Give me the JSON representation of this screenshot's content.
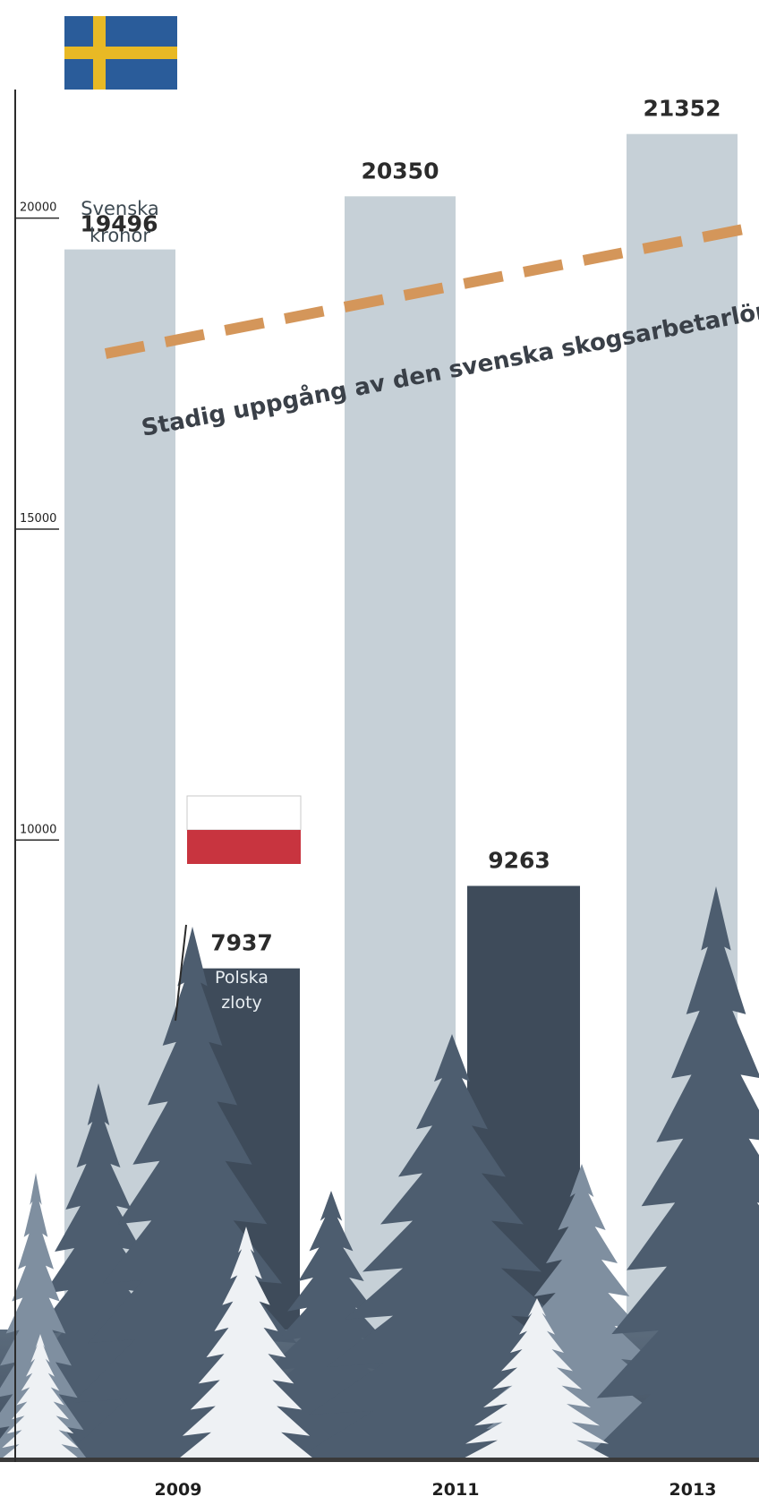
{
  "chart_data": {
    "type": "bar",
    "categories": [
      "2009",
      "2011",
      "2013"
    ],
    "series": [
      {
        "name": "Svenska kronor",
        "values": [
          19496,
          20350,
          21352
        ],
        "value_labels": [
          "19496",
          "20350",
          "21352"
        ],
        "color": "#c6d0d7",
        "flag": "sweden"
      },
      {
        "name": "Polska zloty",
        "values": [
          7937,
          9263,
          null
        ],
        "value_labels": [
          "7937",
          "9263",
          ""
        ],
        "color": "#3e4b5a",
        "flag": "poland"
      }
    ],
    "yticks": [
      10000,
      15000,
      20000
    ],
    "ytick_labels": [
      "10000",
      "15000",
      "20000"
    ],
    "ylim": [
      0,
      21800
    ],
    "annotation": "Stadig uppgång av den svenska skogsarbetarlönen ...",
    "colors": {
      "trend_line": "#d4965a",
      "tree_dark": "#4d5d6f",
      "tree_mid": "#7f8fa0",
      "tree_light": "#eef1f4",
      "flag_se_blue": "#2a5c9a",
      "flag_se_yellow": "#e8b925",
      "flag_pl_red": "#c8343f"
    },
    "title": "",
    "xlabel": "",
    "ylabel": "",
    "grid": false,
    "legend": "none"
  }
}
